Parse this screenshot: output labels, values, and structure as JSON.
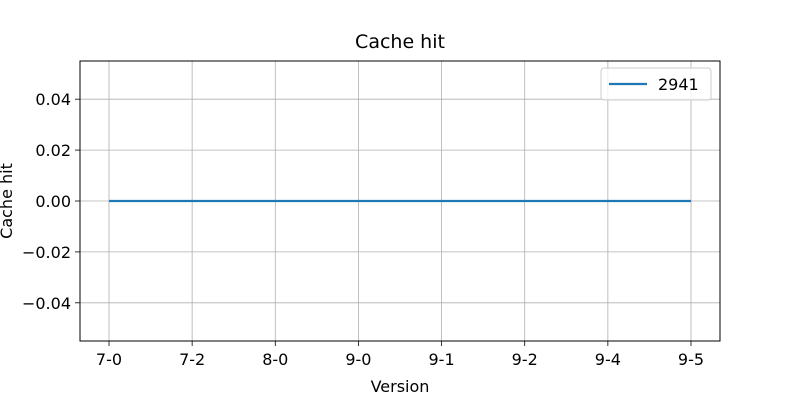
{
  "chart_data": {
    "type": "line",
    "title": "Cache hit",
    "xlabel": "Version",
    "ylabel": "Cache hit",
    "categories": [
      "7-0",
      "7-2",
      "8-0",
      "9-0",
      "9-1",
      "9-2",
      "9-4",
      "9-5"
    ],
    "series": [
      {
        "name": "2941",
        "color": "#1f77b4",
        "values": [
          0,
          0,
          0,
          0,
          0,
          0,
          0,
          0
        ]
      }
    ],
    "ylim": [
      -0.055,
      0.055
    ],
    "yticks": [
      0.04,
      0.02,
      0.0,
      -0.02,
      -0.04
    ],
    "ytick_labels": [
      "0.04",
      "0.02",
      "0.00",
      "−0.02",
      "−0.04"
    ],
    "grid": true,
    "legend_position": "upper right"
  }
}
